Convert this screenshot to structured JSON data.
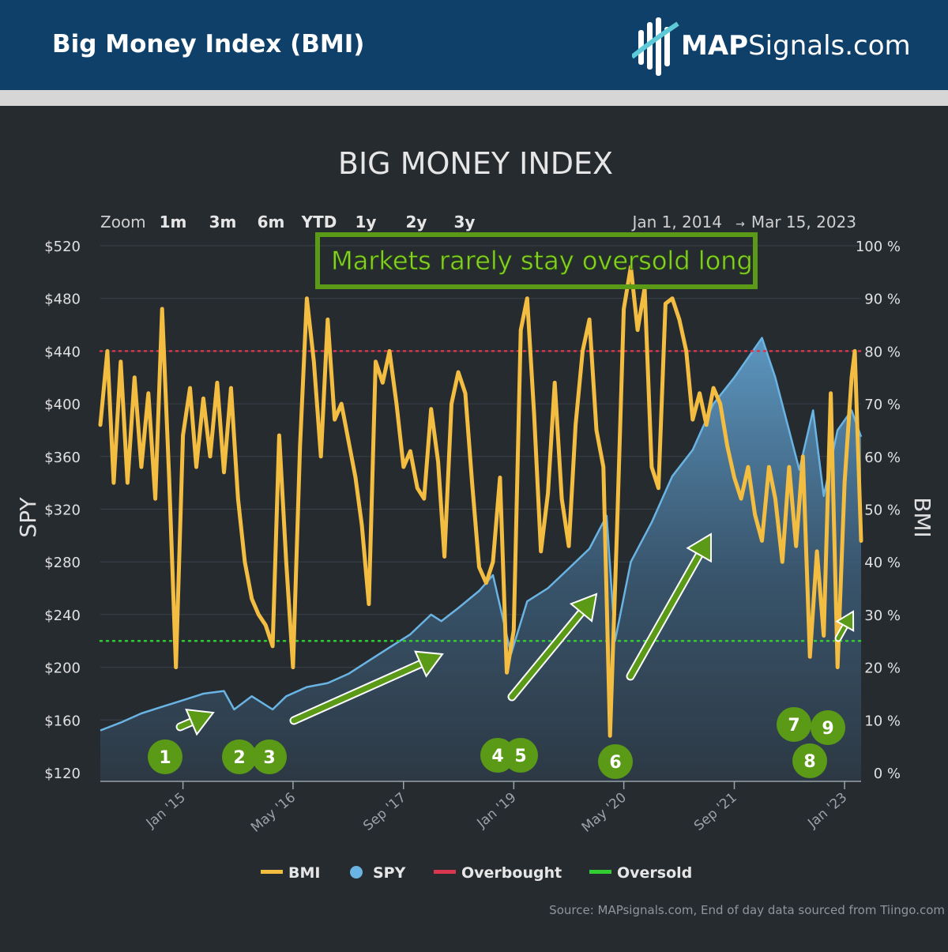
{
  "header": {
    "title": "Big Money Index (BMI)",
    "brand_bold": "MAP",
    "brand_rest": "Signals.com"
  },
  "colors": {
    "header_bg": "#0f406a",
    "bmi": "#f3bd42",
    "spy": "#6ab4e3",
    "overbought": "#d9364f",
    "oversold": "#33cc33",
    "annotation": "#5a9a16"
  },
  "zoom": {
    "label": "Zoom",
    "options": [
      "1m",
      "3m",
      "6m",
      "YTD",
      "1y",
      "2y",
      "3y"
    ]
  },
  "range": {
    "from": "Jan 1, 2014",
    "arrow": "→",
    "to": "Mar 15, 2023"
  },
  "annotation": {
    "text": "Markets rarely stay oversold long"
  },
  "markers": [
    "1",
    "2",
    "3",
    "4",
    "5",
    "6",
    "7",
    "8",
    "9"
  ],
  "legend": [
    "BMI",
    "SPY",
    "Overbought",
    "Oversold"
  ],
  "source": "Source: MAPsignals.com, End of day data sourced from Tiingo.com",
  "chart_data": {
    "type": "line",
    "title": "BIG MONEY INDEX",
    "left_axis": {
      "label": "SPY",
      "ticks": [
        "$520",
        "$480",
        "$440",
        "$400",
        "$360",
        "$320",
        "$280",
        "$240",
        "$200",
        "$160",
        "$120"
      ],
      "range": [
        120,
        520
      ]
    },
    "right_axis": {
      "label": "BMI",
      "ticks": [
        "100 %",
        "90 %",
        "80 %",
        "70 %",
        "60 %",
        "50 %",
        "40 %",
        "30 %",
        "20 %",
        "10 %",
        "0 %"
      ],
      "range": [
        0,
        100
      ]
    },
    "x_ticks": [
      "Jan '15",
      "May '16",
      "Sep '17",
      "Jan '19",
      "May '20",
      "Sep '21",
      "Jan '23"
    ],
    "x_range": [
      "2014-01-01",
      "2023-03-15"
    ],
    "overbought_level": 80,
    "oversold_level": 25,
    "series": [
      {
        "name": "BMI",
        "axis": "right",
        "points": [
          [
            "2014-01-01",
            66
          ],
          [
            "2014-02-01",
            80
          ],
          [
            "2014-03-01",
            55
          ],
          [
            "2014-04-01",
            78
          ],
          [
            "2014-05-01",
            55
          ],
          [
            "2014-06-01",
            75
          ],
          [
            "2014-07-01",
            58
          ],
          [
            "2014-08-01",
            72
          ],
          [
            "2014-09-01",
            52
          ],
          [
            "2014-10-01",
            88
          ],
          [
            "2014-11-01",
            56
          ],
          [
            "2014-12-01",
            20
          ],
          [
            "2015-01-01",
            64
          ],
          [
            "2015-02-01",
            73
          ],
          [
            "2015-03-01",
            58
          ],
          [
            "2015-04-01",
            71
          ],
          [
            "2015-05-01",
            60
          ],
          [
            "2015-06-01",
            74
          ],
          [
            "2015-07-01",
            57
          ],
          [
            "2015-08-01",
            73
          ],
          [
            "2015-09-01",
            52
          ],
          [
            "2015-10-01",
            40
          ],
          [
            "2015-11-01",
            33
          ],
          [
            "2015-12-01",
            30
          ],
          [
            "2016-01-01",
            28
          ],
          [
            "2016-02-01",
            24
          ],
          [
            "2016-03-01",
            64
          ],
          [
            "2016-04-01",
            40
          ],
          [
            "2016-05-01",
            20
          ],
          [
            "2016-06-01",
            62
          ],
          [
            "2016-07-01",
            90
          ],
          [
            "2016-08-01",
            78
          ],
          [
            "2016-09-01",
            60
          ],
          [
            "2016-10-01",
            86
          ],
          [
            "2016-11-01",
            67
          ],
          [
            "2016-12-01",
            70
          ],
          [
            "2017-01-01",
            63
          ],
          [
            "2017-02-01",
            56
          ],
          [
            "2017-03-01",
            47
          ],
          [
            "2017-04-01",
            32
          ],
          [
            "2017-05-01",
            78
          ],
          [
            "2017-06-01",
            74
          ],
          [
            "2017-07-01",
            80
          ],
          [
            "2017-08-01",
            70
          ],
          [
            "2017-09-01",
            58
          ],
          [
            "2017-10-01",
            61
          ],
          [
            "2017-11-01",
            54
          ],
          [
            "2017-12-01",
            52
          ],
          [
            "2018-01-01",
            69
          ],
          [
            "2018-02-01",
            59
          ],
          [
            "2018-03-01",
            41
          ],
          [
            "2018-04-01",
            70
          ],
          [
            "2018-05-01",
            76
          ],
          [
            "2018-06-01",
            72
          ],
          [
            "2018-07-01",
            55
          ],
          [
            "2018-08-01",
            39
          ],
          [
            "2018-09-01",
            36
          ],
          [
            "2018-10-01",
            40
          ],
          [
            "2018-11-01",
            56
          ],
          [
            "2018-12-01",
            19
          ],
          [
            "2019-01-01",
            27
          ],
          [
            "2019-02-01",
            84
          ],
          [
            "2019-03-01",
            90
          ],
          [
            "2019-04-01",
            68
          ],
          [
            "2019-05-01",
            42
          ],
          [
            "2019-06-01",
            53
          ],
          [
            "2019-07-01",
            74
          ],
          [
            "2019-08-01",
            52
          ],
          [
            "2019-09-01",
            43
          ],
          [
            "2019-10-01",
            66
          ],
          [
            "2019-11-01",
            80
          ],
          [
            "2019-12-01",
            86
          ],
          [
            "2020-01-01",
            65
          ],
          [
            "2020-02-01",
            58
          ],
          [
            "2020-03-01",
            7
          ],
          [
            "2020-04-01",
            46
          ],
          [
            "2020-05-01",
            88
          ],
          [
            "2020-06-01",
            96
          ],
          [
            "2020-07-01",
            84
          ],
          [
            "2020-08-01",
            92
          ],
          [
            "2020-09-01",
            58
          ],
          [
            "2020-10-01",
            54
          ],
          [
            "2020-11-01",
            89
          ],
          [
            "2020-12-01",
            90
          ],
          [
            "2021-01-01",
            86
          ],
          [
            "2021-02-01",
            80
          ],
          [
            "2021-03-01",
            67
          ],
          [
            "2021-04-01",
            72
          ],
          [
            "2021-05-01",
            66
          ],
          [
            "2021-06-01",
            73
          ],
          [
            "2021-07-01",
            70
          ],
          [
            "2021-08-01",
            62
          ],
          [
            "2021-09-01",
            56
          ],
          [
            "2021-10-01",
            52
          ],
          [
            "2021-11-01",
            58
          ],
          [
            "2021-12-01",
            49
          ],
          [
            "2022-01-01",
            44
          ],
          [
            "2022-02-01",
            58
          ],
          [
            "2022-03-01",
            52
          ],
          [
            "2022-04-01",
            40
          ],
          [
            "2022-05-01",
            58
          ],
          [
            "2022-06-01",
            43
          ],
          [
            "2022-07-01",
            60
          ],
          [
            "2022-08-01",
            22
          ],
          [
            "2022-09-01",
            42
          ],
          [
            "2022-10-01",
            26
          ],
          [
            "2022-11-01",
            72
          ],
          [
            "2022-12-01",
            20
          ],
          [
            "2023-01-01",
            55
          ],
          [
            "2023-02-01",
            75
          ],
          [
            "2023-02-15",
            80
          ],
          [
            "2023-03-15",
            44
          ]
        ]
      },
      {
        "name": "SPY",
        "axis": "left",
        "points": [
          [
            "2014-01-01",
            152
          ],
          [
            "2014-04-01",
            158
          ],
          [
            "2014-07-01",
            165
          ],
          [
            "2014-10-01",
            170
          ],
          [
            "2015-01-01",
            175
          ],
          [
            "2015-04-01",
            180
          ],
          [
            "2015-07-01",
            182
          ],
          [
            "2015-08-15",
            168
          ],
          [
            "2015-11-01",
            178
          ],
          [
            "2016-02-01",
            168
          ],
          [
            "2016-04-01",
            178
          ],
          [
            "2016-07-01",
            185
          ],
          [
            "2016-10-01",
            188
          ],
          [
            "2017-01-01",
            195
          ],
          [
            "2017-04-01",
            205
          ],
          [
            "2017-07-01",
            215
          ],
          [
            "2017-10-01",
            225
          ],
          [
            "2018-01-01",
            240
          ],
          [
            "2018-02-15",
            235
          ],
          [
            "2018-05-01",
            245
          ],
          [
            "2018-08-01",
            258
          ],
          [
            "2018-10-01",
            270
          ],
          [
            "2018-12-20",
            210
          ],
          [
            "2019-03-01",
            250
          ],
          [
            "2019-06-01",
            260
          ],
          [
            "2019-09-01",
            275
          ],
          [
            "2019-12-01",
            290
          ],
          [
            "2020-02-15",
            315
          ],
          [
            "2020-03-23",
            220
          ],
          [
            "2020-06-01",
            280
          ],
          [
            "2020-09-01",
            310
          ],
          [
            "2020-12-01",
            345
          ],
          [
            "2021-03-01",
            365
          ],
          [
            "2021-06-01",
            400
          ],
          [
            "2021-09-01",
            420
          ],
          [
            "2022-01-01",
            450
          ],
          [
            "2022-03-01",
            420
          ],
          [
            "2022-06-15",
            350
          ],
          [
            "2022-08-15",
            395
          ],
          [
            "2022-10-01",
            330
          ],
          [
            "2022-12-01",
            380
          ],
          [
            "2023-02-01",
            395
          ],
          [
            "2023-03-15",
            375
          ]
        ]
      }
    ],
    "legend_placement": "bottom"
  }
}
